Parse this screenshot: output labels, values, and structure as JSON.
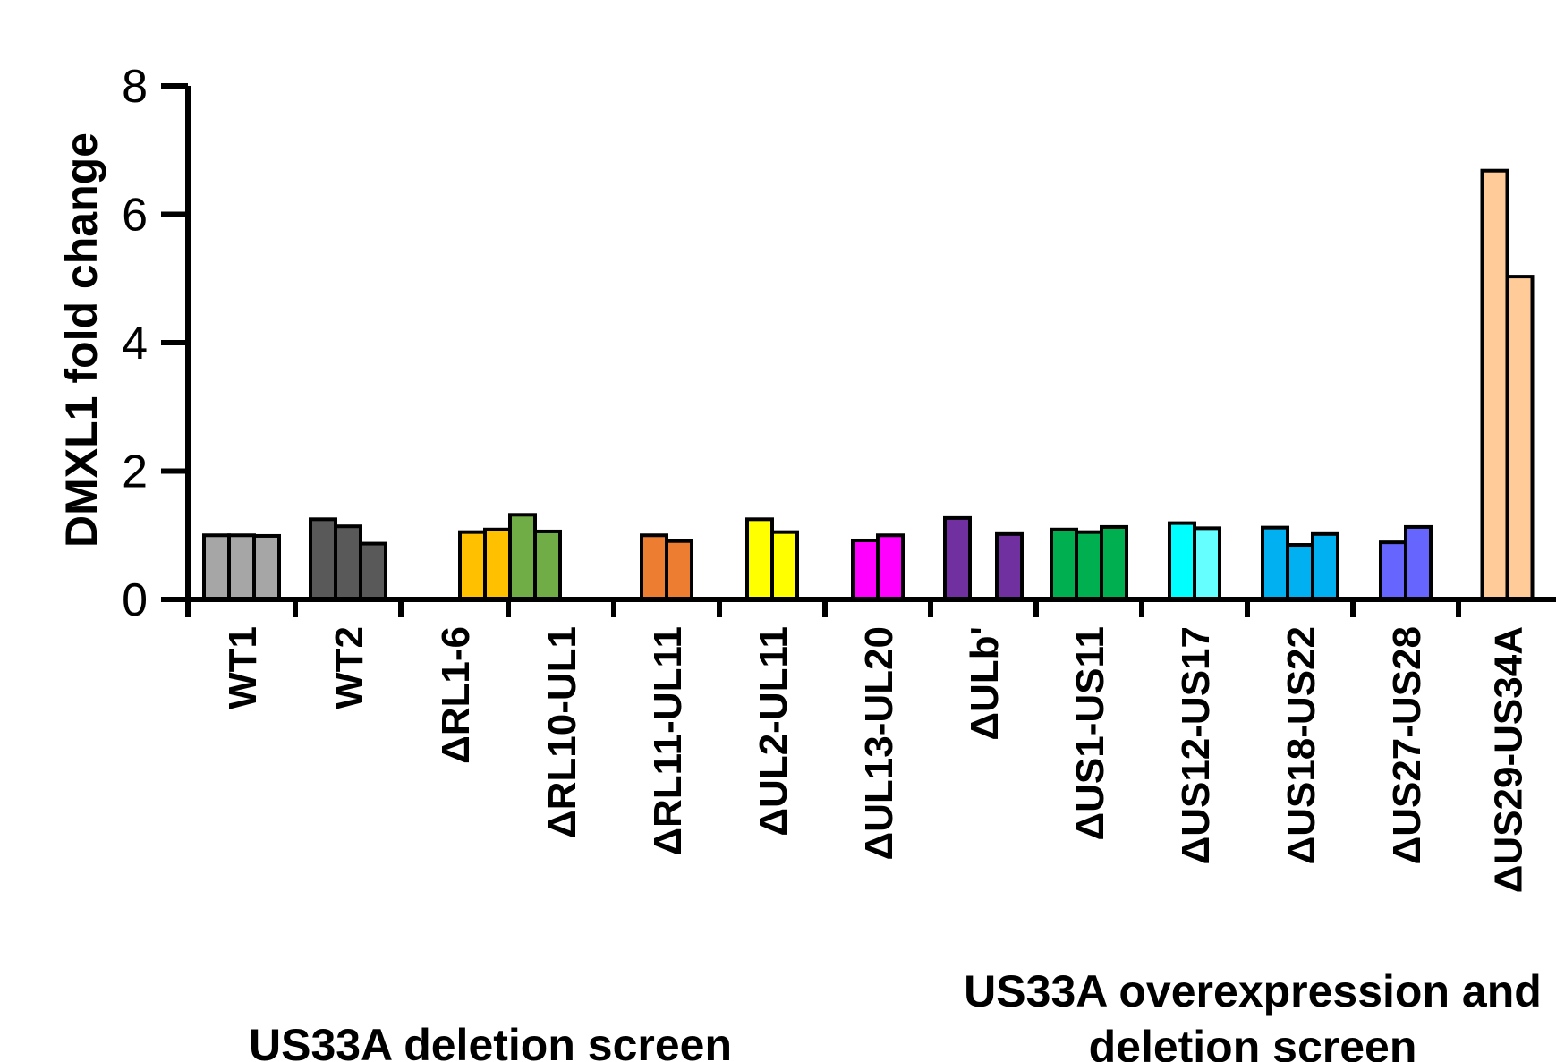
{
  "chart_data": {
    "type": "bar",
    "ylabel": "DMXL1 fold change",
    "xlabel": "",
    "ylim": [
      0,
      8
    ],
    "yticks": [
      0,
      2,
      4,
      6,
      8
    ],
    "categories": [
      {
        "label": "WT1",
        "values": [
          1.0,
          1.0,
          0.99
        ],
        "colors": [
          "#a6a6a6",
          "#a6a6a6",
          "#a6a6a6"
        ]
      },
      {
        "label": "WT2",
        "values": [
          1.25,
          1.14,
          0.87
        ],
        "colors": [
          "#595959",
          "#595959",
          "#595959"
        ]
      },
      {
        "label": "ΔRL1-6",
        "values": [
          1.05,
          1.09
        ],
        "colors": [
          "#ffc000",
          "#ffc000"
        ]
      },
      {
        "label": "ΔRL10-UL1",
        "values": [
          1.32,
          1.06
        ],
        "colors": [
          "#70ad47",
          "#70ad47"
        ]
      },
      {
        "label": "ΔRL11-UL11",
        "values": [
          1.0,
          0.91
        ],
        "colors": [
          "#ed7d31",
          "#ed7d31"
        ]
      },
      {
        "label": "ΔUL2-UL11",
        "values": [
          1.25,
          1.05
        ],
        "colors": [
          "#ffff00",
          "#ffff00"
        ]
      },
      {
        "label": "ΔUL13-UL20",
        "values": [
          0.92,
          1.0
        ],
        "colors": [
          "#ff00ff",
          "#ff00ff"
        ]
      },
      {
        "label": "ΔULb'",
        "values": [
          1.27,
          1.02
        ],
        "colors": [
          "#7030a0",
          "#7030a0"
        ]
      },
      {
        "label": "ΔUS1-US11",
        "values": [
          1.09,
          1.05,
          1.13
        ],
        "colors": [
          "#00b050",
          "#00b050",
          "#00b050"
        ]
      },
      {
        "label": "ΔUS12-US17",
        "values": [
          1.19,
          1.11
        ],
        "colors": [
          "#00ffff",
          "#66ffff"
        ]
      },
      {
        "label": "ΔUS18-US22",
        "values": [
          1.12,
          0.85,
          1.02
        ],
        "colors": [
          "#00b0f0",
          "#00b0f0",
          "#00b0f0"
        ]
      },
      {
        "label": "ΔUS27-US28",
        "values": [
          0.89,
          1.13
        ],
        "colors": [
          "#6666ff",
          "#6666ff"
        ]
      },
      {
        "label": "ΔUS29-US34A",
        "values": [
          6.68,
          5.03
        ],
        "colors": [
          "#ffcc99",
          "#ffcc99"
        ]
      }
    ],
    "group_labels": [
      {
        "lines": [
          "US33A deletion screen"
        ]
      },
      {
        "lines": [
          "US33A overexpression and",
          "deletion screen"
        ]
      }
    ]
  }
}
